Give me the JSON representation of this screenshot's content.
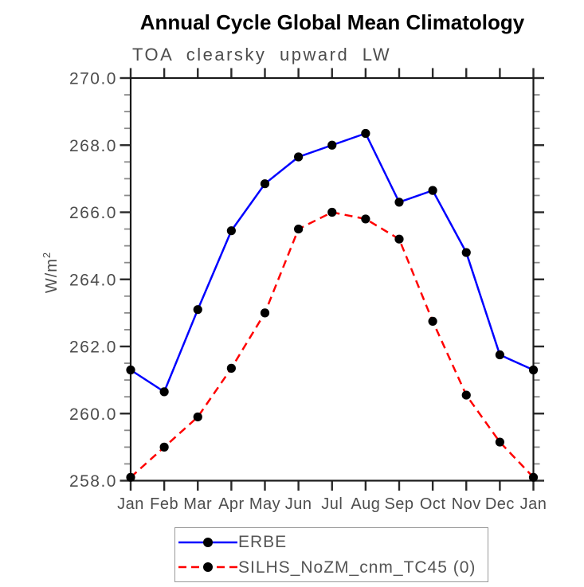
{
  "chart_data": {
    "type": "line",
    "title": "Annual Cycle Global Mean Climatology",
    "subtitle": "TOA clearsky upward LW",
    "ylabel": "W/m²",
    "ylabel_base": "W/m",
    "ylabel_exponent": "2",
    "categories": [
      "Jan",
      "Feb",
      "Mar",
      "Apr",
      "May",
      "Jun",
      "Jul",
      "Aug",
      "Sep",
      "Oct",
      "Nov",
      "Dec",
      "Jan"
    ],
    "ylim": [
      258.0,
      270.0
    ],
    "ytick_step": 2.0,
    "ytick_minor_step": 0.5,
    "ytick_labels": [
      "258.0",
      "260.0",
      "262.0",
      "264.0",
      "266.0",
      "268.0",
      "270.0"
    ],
    "grid": false,
    "legend_position": "bottom",
    "marker": {
      "shape": "circle",
      "color": "#000000"
    },
    "series": [
      {
        "name": "ERBE",
        "color": "#0000ff",
        "line_style": "solid",
        "values": [
          261.3,
          260.65,
          263.1,
          265.45,
          266.85,
          267.65,
          268.0,
          268.35,
          266.3,
          266.65,
          264.8,
          261.75,
          261.3
        ]
      },
      {
        "name": "SILHS_NoZM_cnm_TC45 (0)",
        "color": "#ff0000",
        "line_style": "dashed",
        "values": [
          258.1,
          259.0,
          259.9,
          261.35,
          263.0,
          265.5,
          266.0,
          265.8,
          265.2,
          262.75,
          260.55,
          259.15,
          258.1
        ]
      }
    ]
  }
}
